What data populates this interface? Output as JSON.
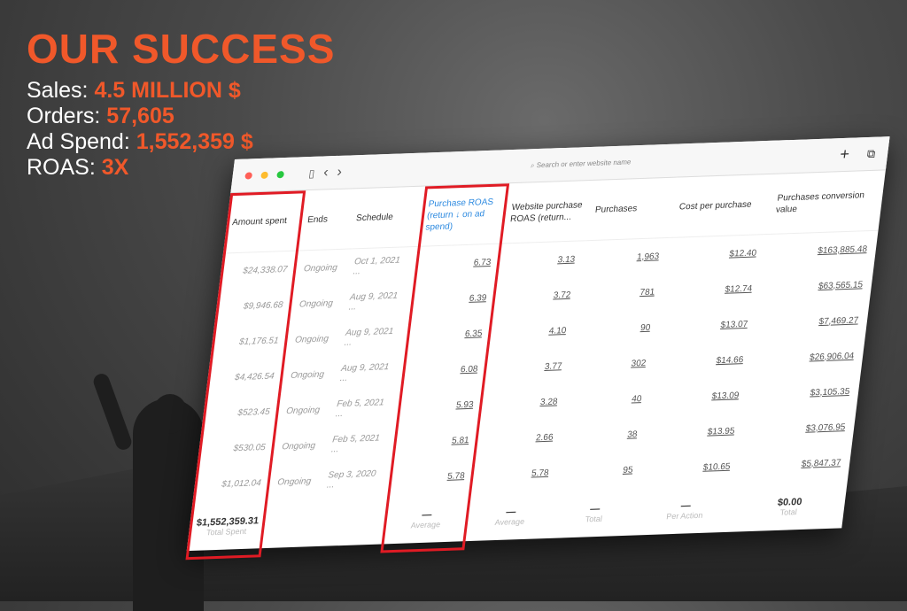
{
  "headline": "OUR SUCCESS",
  "stats": [
    {
      "label": "Sales: ",
      "value": "4.5 MILLION $"
    },
    {
      "label": "Orders: ",
      "value": "57,605"
    },
    {
      "label": "Ad Spend: ",
      "value": "1,552,359 $"
    },
    {
      "label": "ROAS: ",
      "value": "3X"
    }
  ],
  "browser": {
    "url_placeholder": "Search or enter website name",
    "colors": {
      "close": "#ff5f57",
      "min": "#febc2e",
      "max": "#28c840"
    }
  },
  "table": {
    "headers": [
      "Amount spent",
      "Ends",
      "Schedule",
      "Purchase ROAS (return ↓ on ad spend)",
      "Website purchase ROAS (return...",
      "Purchases",
      "Cost per purchase",
      "Purchases conversion value"
    ],
    "rows": [
      [
        "$24,338.07",
        "Ongoing",
        "Oct 1, 2021 ...",
        "6.73",
        "3.13",
        "1,963",
        "$12.40",
        "$163,885.48"
      ],
      [
        "$9,946.68",
        "Ongoing",
        "Aug 9, 2021 ...",
        "6.39",
        "3.72",
        "781",
        "$12.74",
        "$63,565.15"
      ],
      [
        "$1,176.51",
        "Ongoing",
        "Aug 9, 2021 ...",
        "6.35",
        "4.10",
        "90",
        "$13.07",
        "$7,469.27"
      ],
      [
        "$4,426.54",
        "Ongoing",
        "Aug 9, 2021 ...",
        "6.08",
        "3.77",
        "302",
        "$14.66",
        "$26,906.04"
      ],
      [
        "$523.45",
        "Ongoing",
        "Feb 5, 2021 ...",
        "5.93",
        "3.28",
        "40",
        "$13.09",
        "$3,105.35"
      ],
      [
        "$530.05",
        "Ongoing",
        "Feb 5, 2021 ...",
        "5.81",
        "2.66",
        "38",
        "$13.95",
        "$3,076.95"
      ],
      [
        "$1,012.04",
        "Ongoing",
        "Sep 3, 2020 ...",
        "5.78",
        "5.78",
        "95",
        "$10.65",
        "$5,847.37"
      ]
    ],
    "footer": [
      {
        "value": "$1,552,359.31",
        "label": "Total Spent"
      },
      {
        "value": "",
        "label": ""
      },
      {
        "value": "",
        "label": ""
      },
      {
        "value": "—",
        "label": "Average"
      },
      {
        "value": "—",
        "label": "Average"
      },
      {
        "value": "—",
        "label": "Total"
      },
      {
        "value": "—",
        "label": "Per Action"
      },
      {
        "value": "$0.00",
        "label": "Total"
      }
    ]
  },
  "accent": "#f0582a",
  "highlight": "#e01b24"
}
